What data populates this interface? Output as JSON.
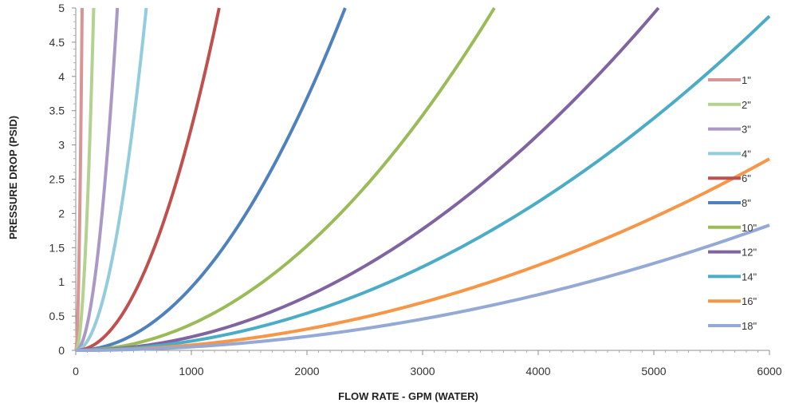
{
  "chart_data": {
    "type": "line",
    "xlabel": "FLOW RATE - GPM (WATER)",
    "ylabel": "PRESSURE DROP (PSID)",
    "xlim": [
      0,
      6000
    ],
    "ylim": [
      0,
      5
    ],
    "x_ticks": [
      "0",
      "1000",
      "2000",
      "3000",
      "4000",
      "5000",
      "6000"
    ],
    "y_ticks": [
      "0",
      "0.5",
      "1",
      "1.5",
      "2",
      "2.5",
      "3",
      "3.5",
      "4",
      "4.5",
      "5"
    ],
    "grid": false,
    "legend_position": "right",
    "curve_shape": "y = k * x^2",
    "series": [
      {
        "name": "1\"",
        "color": "#d99594",
        "x": [
          0,
          15,
          30,
          45,
          55
        ],
        "y": [
          0,
          0.37,
          1.49,
          3.35,
          5.0
        ]
      },
      {
        "name": "2\"",
        "color": "#b3d18f",
        "x": [
          0,
          40,
          80,
          120,
          155
        ],
        "y": [
          0,
          0.33,
          1.33,
          3.0,
          5.0
        ]
      },
      {
        "name": "3\"",
        "color": "#aa99c7",
        "x": [
          0,
          90,
          180,
          270,
          360
        ],
        "y": [
          0,
          0.31,
          1.25,
          2.81,
          5.0
        ]
      },
      {
        "name": "4\"",
        "color": "#93cddd",
        "x": [
          0,
          150,
          300,
          450,
          610
        ],
        "y": [
          0,
          0.3,
          1.21,
          2.72,
          5.0
        ]
      },
      {
        "name": "6\"",
        "color": "#c0504d",
        "x": [
          0,
          300,
          600,
          900,
          1240
        ],
        "y": [
          0,
          0.29,
          1.17,
          2.63,
          5.0
        ]
      },
      {
        "name": "8\"",
        "color": "#4f81bd",
        "x": [
          0,
          600,
          1200,
          1800,
          2330
        ],
        "y": [
          0,
          0.33,
          1.33,
          2.98,
          5.0
        ]
      },
      {
        "name": "10\"",
        "color": "#9bbb59",
        "x": [
          0,
          1000,
          2000,
          3000,
          3620
        ],
        "y": [
          0,
          0.38,
          1.53,
          3.43,
          5.0
        ]
      },
      {
        "name": "12\"",
        "color": "#8064a2",
        "x": [
          0,
          1000,
          2000,
          3000,
          4000,
          5040
        ],
        "y": [
          0,
          0.2,
          0.79,
          1.77,
          3.15,
          5.0
        ]
      },
      {
        "name": "14\"",
        "color": "#4bacc6",
        "x": [
          0,
          1000,
          2000,
          3000,
          4000,
          5000,
          6000
        ],
        "y": [
          0,
          0.13,
          0.54,
          1.22,
          2.17,
          3.39,
          4.88
        ]
      },
      {
        "name": "16\"",
        "color": "#f79646",
        "x": [
          0,
          1000,
          2000,
          3000,
          4000,
          5000,
          6000
        ],
        "y": [
          0,
          0.08,
          0.31,
          0.7,
          1.24,
          1.94,
          2.8
        ]
      },
      {
        "name": "18\"",
        "color": "#95a9d6",
        "x": [
          0,
          1000,
          2000,
          3000,
          4000,
          5000,
          6000
        ],
        "y": [
          0,
          0.05,
          0.2,
          0.46,
          0.81,
          1.27,
          1.83
        ]
      }
    ]
  }
}
